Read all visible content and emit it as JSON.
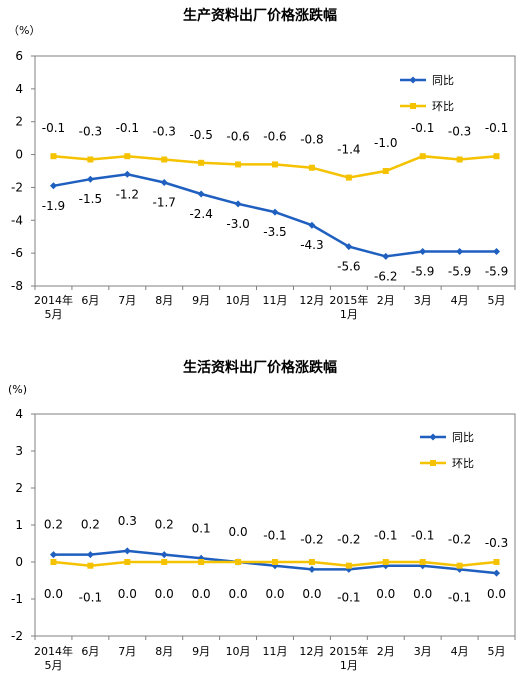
{
  "colors": {
    "yoy": "#1f5fbf",
    "mom": "#f5c200",
    "plot_bg": "#ffffff",
    "frame": "#808080"
  },
  "chart_data": [
    {
      "type": "line",
      "title": "生产资料出厂价格涨跌幅",
      "unit": "（%）",
      "categories": [
        "2014年5月",
        "6月",
        "7月",
        "8月",
        "9月",
        "10月",
        "11月",
        "12月",
        "2015年1月",
        "2月",
        "3月",
        "4月",
        "5月"
      ],
      "x_tick_lines": [
        [
          "2014年",
          "5月"
        ],
        [
          "6月"
        ],
        [
          "7月"
        ],
        [
          "8月"
        ],
        [
          "9月"
        ],
        [
          "10月"
        ],
        [
          "11月"
        ],
        [
          "12月"
        ],
        [
          "2015年",
          "1月"
        ],
        [
          "2月"
        ],
        [
          "3月"
        ],
        [
          "4月"
        ],
        [
          "5月"
        ]
      ],
      "yticks": [
        6,
        4,
        2,
        0,
        -2,
        -4,
        -6,
        -8
      ],
      "ylim": [
        -8,
        6
      ],
      "legend_position": "top-right",
      "series": [
        {
          "name": "同比",
          "values": [
            -1.9,
            -1.5,
            -1.2,
            -1.7,
            -2.4,
            -3.0,
            -3.5,
            -4.3,
            -5.6,
            -6.2,
            -5.9,
            -5.9,
            -5.9
          ]
        },
        {
          "name": "环比",
          "values": [
            -0.1,
            -0.3,
            -0.1,
            -0.3,
            -0.5,
            -0.6,
            -0.6,
            -0.8,
            -1.4,
            -1.0,
            -0.1,
            -0.3,
            -0.1
          ]
        }
      ]
    },
    {
      "type": "line",
      "title": "生活资料出厂价格涨跌幅",
      "unit": "(%)",
      "categories": [
        "2014年5月",
        "6月",
        "7月",
        "8月",
        "9月",
        "10月",
        "11月",
        "12月",
        "2015年1月",
        "2月",
        "3月",
        "4月",
        "5月"
      ],
      "x_tick_lines": [
        [
          "2014年",
          "5月"
        ],
        [
          "6月"
        ],
        [
          "7月"
        ],
        [
          "8月"
        ],
        [
          "9月"
        ],
        [
          "10月"
        ],
        [
          "11月"
        ],
        [
          "12月"
        ],
        [
          "2015年",
          "1月"
        ],
        [
          "2月"
        ],
        [
          "3月"
        ],
        [
          "4月"
        ],
        [
          "5月"
        ]
      ],
      "yticks": [
        4,
        3,
        2,
        1,
        0,
        -1,
        -2
      ],
      "ylim": [
        -2,
        4
      ],
      "legend_position": "top-right",
      "series": [
        {
          "name": "同比",
          "values": [
            0.2,
            0.2,
            0.3,
            0.2,
            0.1,
            0.0,
            -0.1,
            -0.2,
            -0.2,
            -0.1,
            -0.1,
            -0.2,
            -0.3
          ]
        },
        {
          "name": "环比",
          "values": [
            0.0,
            -0.1,
            0.0,
            0.0,
            0.0,
            0.0,
            0.0,
            0.0,
            -0.1,
            0.0,
            0.0,
            -0.1,
            0.0
          ]
        }
      ]
    }
  ]
}
